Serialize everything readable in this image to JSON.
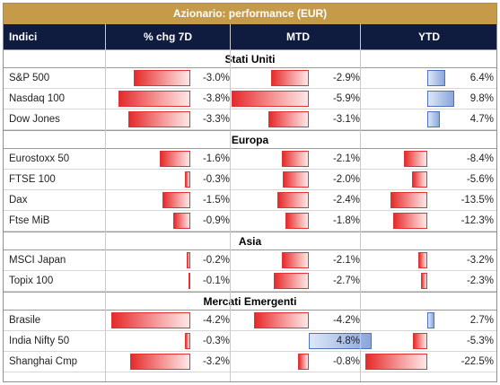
{
  "chart_data": {
    "type": "table",
    "title": "Azionario: performance (EUR)",
    "columns": [
      "Indici",
      "% chg 7D",
      "MTD",
      "YTD"
    ],
    "sections": [
      {
        "name": "Stati Uniti",
        "rows": [
          {
            "label": "S&P 500",
            "d7": -3.0,
            "mtd": -2.9,
            "ytd": 6.4
          },
          {
            "label": "Nasdaq 100",
            "d7": -3.8,
            "mtd": -5.9,
            "ytd": 9.8
          },
          {
            "label": "Dow Jones",
            "d7": -3.3,
            "mtd": -3.1,
            "ytd": 4.7
          }
        ]
      },
      {
        "name": "Europa",
        "rows": [
          {
            "label": "Eurostoxx 50",
            "d7": -1.6,
            "mtd": -2.1,
            "ytd": -8.4
          },
          {
            "label": "FTSE 100",
            "d7": -0.3,
            "mtd": -2.0,
            "ytd": -5.6
          },
          {
            "label": "Dax",
            "d7": -1.5,
            "mtd": -2.4,
            "ytd": -13.5
          },
          {
            "label": "Ftse MiB",
            "d7": -0.9,
            "mtd": -1.8,
            "ytd": -12.3
          }
        ]
      },
      {
        "name": "Asia",
        "rows": [
          {
            "label": "MSCI Japan",
            "d7": -0.2,
            "mtd": -2.1,
            "ytd": -3.2
          },
          {
            "label": "Topix 100",
            "d7": -0.1,
            "mtd": -2.7,
            "ytd": -2.3
          }
        ]
      },
      {
        "name": "Mercati Emergenti",
        "rows": [
          {
            "label": "Brasile",
            "d7": -4.2,
            "mtd": -4.2,
            "ytd": 2.7
          },
          {
            "label": "India Nifty 50",
            "d7": -0.3,
            "mtd": 4.8,
            "ytd": -5.3
          },
          {
            "label": "Shanghai Cmp",
            "d7": -3.2,
            "mtd": -0.8,
            "ytd": -22.5
          }
        ]
      }
    ]
  },
  "colors": {
    "title_bg": "#c59b4a",
    "header_bg": "#101c3f",
    "negative": "#e52b2b",
    "positive": "#4f72c0"
  }
}
